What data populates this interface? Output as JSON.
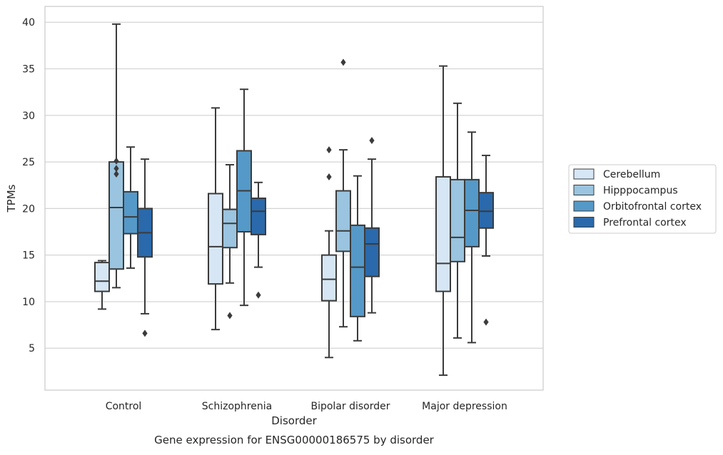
{
  "chart_data": {
    "type": "boxplot",
    "title": "Gene expression for ENSG00000186575 by disorder",
    "xlabel": "Disorder",
    "ylabel": "TPMs",
    "ylim": [
      0.5,
      41.7
    ],
    "yticks": [
      5,
      10,
      15,
      20,
      25,
      30,
      35,
      40
    ],
    "grid": true,
    "legend_position": "right",
    "categories": [
      "Control",
      "Schizophrenia",
      "Bipolar disorder",
      "Major depression"
    ],
    "series": [
      {
        "name": "Cerebellum",
        "color": "#d6e6f4",
        "boxes": [
          {
            "whislo": 9.2,
            "q1": 11.1,
            "med": 12.2,
            "q3": 14.2,
            "whishi": 14.4,
            "fliers": []
          },
          {
            "whislo": 7.0,
            "q1": 11.9,
            "med": 15.9,
            "q3": 21.6,
            "whishi": 30.8,
            "fliers": []
          },
          {
            "whislo": 4.0,
            "q1": 10.1,
            "med": 12.4,
            "q3": 15.0,
            "whishi": 17.6,
            "fliers": [
              26.3,
              23.4
            ]
          },
          {
            "whislo": 2.1,
            "q1": 11.1,
            "med": 14.1,
            "q3": 23.4,
            "whishi": 35.3,
            "fliers": []
          }
        ]
      },
      {
        "name": "Hipppocampus",
        "color": "#9ac4df",
        "boxes": [
          {
            "whislo": 11.5,
            "q1": 13.5,
            "med": 20.1,
            "q3": 25.0,
            "whishi": 39.8,
            "fliers": [
              25.1,
              24.3,
              23.7
            ]
          },
          {
            "whislo": 12.0,
            "q1": 15.8,
            "med": 18.4,
            "q3": 19.9,
            "whishi": 24.7,
            "fliers": [
              8.5
            ]
          },
          {
            "whislo": 7.3,
            "q1": 15.4,
            "med": 17.6,
            "q3": 21.9,
            "whishi": 26.3,
            "fliers": [
              35.7
            ]
          },
          {
            "whislo": 6.1,
            "q1": 14.3,
            "med": 16.9,
            "q3": 23.1,
            "whishi": 31.3,
            "fliers": []
          }
        ]
      },
      {
        "name": "Orbitofrontal cortex",
        "color": "#5599c8",
        "boxes": [
          {
            "whislo": 13.6,
            "q1": 17.3,
            "med": 19.1,
            "q3": 21.8,
            "whishi": 26.6,
            "fliers": []
          },
          {
            "whislo": 9.6,
            "q1": 17.5,
            "med": 21.9,
            "q3": 26.2,
            "whishi": 32.8,
            "fliers": []
          },
          {
            "whislo": 5.8,
            "q1": 8.4,
            "med": 13.7,
            "q3": 18.2,
            "whishi": 23.5,
            "fliers": []
          },
          {
            "whislo": 5.6,
            "q1": 15.9,
            "med": 19.8,
            "q3": 23.1,
            "whishi": 28.2,
            "fliers": []
          }
        ]
      },
      {
        "name": "Prefrontal cortex",
        "color": "#2a69ab",
        "boxes": [
          {
            "whislo": 8.7,
            "q1": 14.8,
            "med": 17.4,
            "q3": 20.0,
            "whishi": 25.3,
            "fliers": [
              6.6
            ]
          },
          {
            "whislo": 13.7,
            "q1": 17.2,
            "med": 19.7,
            "q3": 21.1,
            "whishi": 22.8,
            "fliers": [
              10.7
            ]
          },
          {
            "whislo": 8.8,
            "q1": 12.7,
            "med": 16.2,
            "q3": 17.9,
            "whishi": 25.3,
            "fliers": [
              27.3
            ]
          },
          {
            "whislo": 14.9,
            "q1": 17.9,
            "med": 19.7,
            "q3": 21.7,
            "whishi": 25.7,
            "fliers": [
              7.8
            ]
          }
        ]
      }
    ]
  }
}
